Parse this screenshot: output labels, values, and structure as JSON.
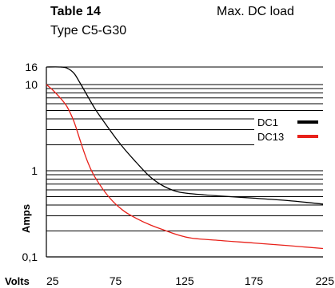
{
  "header": {
    "table_label": "Table 14",
    "type_label": "Type C5-G30",
    "load_label": "Max. DC load"
  },
  "chart_data": {
    "type": "line",
    "title": "Table 14",
    "subtitle": "Type C5-G30",
    "note": "Max. DC load",
    "xlabel": "Volts",
    "ylabel": "Amps",
    "xlim": [
      25,
      225
    ],
    "ylim": [
      0.1,
      16
    ],
    "y_scale": "log",
    "grid": "horizontal",
    "x_ticks": [
      25,
      75,
      125,
      175,
      225
    ],
    "x_tick_labels": [
      "25",
      "75",
      "125",
      "175",
      "225"
    ],
    "y_ticks": [
      0.1,
      1,
      10,
      16
    ],
    "y_tick_labels": [
      "0,1",
      "1",
      "10",
      "16"
    ],
    "legend_position": "right",
    "series": [
      {
        "name": "DC1",
        "color": "#000000",
        "x": [
          25,
          35,
          40,
          45,
          50,
          60,
          70,
          80,
          90,
          100,
          110,
          120,
          130,
          150,
          175,
          200,
          225
        ],
        "y": [
          16,
          16,
          15.5,
          13.5,
          10,
          5.3,
          3.1,
          1.9,
          1.25,
          0.85,
          0.66,
          0.57,
          0.54,
          0.51,
          0.48,
          0.45,
          0.41
        ]
      },
      {
        "name": "DC13",
        "color": "#e8211a",
        "x": [
          25,
          30,
          35,
          40,
          45,
          50,
          55,
          60,
          70,
          80,
          90,
          100,
          110,
          120,
          130,
          150,
          175,
          200,
          225
        ],
        "y": [
          10,
          8.5,
          7,
          5.5,
          3.7,
          2.1,
          1.25,
          0.85,
          0.5,
          0.35,
          0.28,
          0.235,
          0.205,
          0.18,
          0.165,
          0.155,
          0.145,
          0.135,
          0.125
        ]
      }
    ]
  }
}
